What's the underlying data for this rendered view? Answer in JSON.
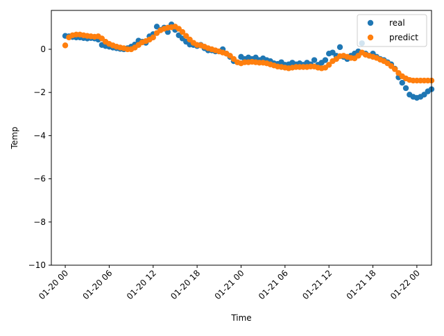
{
  "chart_data": {
    "type": "scatter",
    "title": "",
    "xlabel": "Time",
    "ylabel": "Temp",
    "ylim": [
      -10,
      1.8
    ],
    "xlim_hours": [
      -1.9,
      50.0
    ],
    "yticks": [
      0,
      -2,
      -4,
      -6,
      -8,
      -10
    ],
    "xticks": [
      {
        "label": "01-20 00",
        "hour": 0
      },
      {
        "label": "01-20 06",
        "hour": 6
      },
      {
        "label": "01-20 12",
        "hour": 12
      },
      {
        "label": "01-20 18",
        "hour": 18
      },
      {
        "label": "01-21 00",
        "hour": 24
      },
      {
        "label": "01-21 06",
        "hour": 30
      },
      {
        "label": "01-21 12",
        "hour": 36
      },
      {
        "label": "01-21 18",
        "hour": 42
      },
      {
        "label": "01-22 00",
        "hour": 48
      }
    ],
    "grid": false,
    "legend_position": "top-right",
    "series": [
      {
        "name": "real",
        "color": "#1f77b4",
        "points": [
          [
            0,
            0.62
          ],
          [
            0.5,
            0.6
          ],
          [
            1,
            0.57
          ],
          [
            1.5,
            0.55
          ],
          [
            2,
            0.55
          ],
          [
            2.5,
            0.52
          ],
          [
            3,
            0.5
          ],
          [
            3.5,
            0.52
          ],
          [
            4,
            0.5
          ],
          [
            4.5,
            0.45
          ],
          [
            5,
            0.2
          ],
          [
            5.5,
            0.15
          ],
          [
            6,
            0.12
          ],
          [
            6.5,
            0.08
          ],
          [
            7,
            0.05
          ],
          [
            7.5,
            0.02
          ],
          [
            8,
            0.0
          ],
          [
            8.5,
            0.05
          ],
          [
            9,
            0.12
          ],
          [
            9.5,
            0.22
          ],
          [
            10,
            0.4
          ],
          [
            10.5,
            0.35
          ],
          [
            11,
            0.3
          ],
          [
            11.5,
            0.6
          ],
          [
            12,
            0.7
          ],
          [
            12.5,
            1.05
          ],
          [
            13,
            0.9
          ],
          [
            13.5,
            1.0
          ],
          [
            14,
            0.8
          ],
          [
            14.5,
            1.15
          ],
          [
            15,
            0.9
          ],
          [
            15.5,
            0.65
          ],
          [
            16,
            0.5
          ],
          [
            16.5,
            0.35
          ],
          [
            17,
            0.22
          ],
          [
            17.5,
            0.2
          ],
          [
            18,
            0.15
          ],
          [
            18.5,
            0.2
          ],
          [
            19,
            0.05
          ],
          [
            19.5,
            -0.05
          ],
          [
            20,
            -0.05
          ],
          [
            20.5,
            -0.1
          ],
          [
            21,
            -0.1
          ],
          [
            21.5,
            0.0
          ],
          [
            22,
            -0.2
          ],
          [
            22.5,
            -0.35
          ],
          [
            23,
            -0.55
          ],
          [
            23.5,
            -0.6
          ],
          [
            24,
            -0.35
          ],
          [
            24.5,
            -0.45
          ],
          [
            25,
            -0.38
          ],
          [
            25.5,
            -0.45
          ],
          [
            26,
            -0.38
          ],
          [
            26.5,
            -0.5
          ],
          [
            27,
            -0.42
          ],
          [
            27.5,
            -0.5
          ],
          [
            28,
            -0.55
          ],
          [
            28.5,
            -0.65
          ],
          [
            29,
            -0.68
          ],
          [
            29.5,
            -0.6
          ],
          [
            30,
            -0.72
          ],
          [
            30.5,
            -0.7
          ],
          [
            31,
            -0.62
          ],
          [
            31.5,
            -0.7
          ],
          [
            32,
            -0.65
          ],
          [
            32.5,
            -0.72
          ],
          [
            33,
            -0.62
          ],
          [
            33.5,
            -0.7
          ],
          [
            34,
            -0.5
          ],
          [
            34.5,
            -0.72
          ],
          [
            35,
            -0.62
          ],
          [
            35.5,
            -0.5
          ],
          [
            36,
            -0.2
          ],
          [
            36.5,
            -0.15
          ],
          [
            37,
            -0.3
          ],
          [
            37.5,
            0.1
          ],
          [
            38,
            -0.35
          ],
          [
            38.5,
            -0.45
          ],
          [
            39,
            -0.3
          ],
          [
            39.5,
            -0.2
          ],
          [
            40,
            -0.1
          ],
          [
            40.5,
            0.28
          ],
          [
            41,
            -0.2
          ],
          [
            41.5,
            -0.3
          ],
          [
            42,
            -0.2
          ],
          [
            42.5,
            -0.35
          ],
          [
            43,
            -0.45
          ],
          [
            43.5,
            -0.5
          ],
          [
            44,
            -0.6
          ],
          [
            44.5,
            -0.7
          ],
          [
            45,
            -0.9
          ],
          [
            45.5,
            -1.3
          ],
          [
            46,
            -1.55
          ],
          [
            46.5,
            -1.8
          ],
          [
            47,
            -2.1
          ],
          [
            47.5,
            -2.2
          ],
          [
            48,
            -2.25
          ],
          [
            48.5,
            -2.2
          ],
          [
            49,
            -2.1
          ],
          [
            49.5,
            -1.95
          ],
          [
            50,
            -1.85
          ]
        ]
      },
      {
        "name": "predict",
        "color": "#ff7f0e",
        "points": [
          [
            0,
            0.18
          ],
          [
            0.5,
            0.55
          ],
          [
            1,
            0.65
          ],
          [
            1.5,
            0.68
          ],
          [
            2,
            0.68
          ],
          [
            2.5,
            0.65
          ],
          [
            3,
            0.62
          ],
          [
            3.5,
            0.6
          ],
          [
            4,
            0.58
          ],
          [
            4.5,
            0.6
          ],
          [
            5,
            0.5
          ],
          [
            5.5,
            0.35
          ],
          [
            6,
            0.25
          ],
          [
            6.5,
            0.18
          ],
          [
            7,
            0.12
          ],
          [
            7.5,
            0.08
          ],
          [
            8,
            0.05
          ],
          [
            8.5,
            0.0
          ],
          [
            9,
            0.0
          ],
          [
            9.5,
            0.08
          ],
          [
            10,
            0.2
          ],
          [
            10.5,
            0.32
          ],
          [
            11,
            0.38
          ],
          [
            11.5,
            0.45
          ],
          [
            12,
            0.55
          ],
          [
            12.5,
            0.75
          ],
          [
            13,
            0.88
          ],
          [
            13.5,
            0.95
          ],
          [
            14,
            1.0
          ],
          [
            14.5,
            1.02
          ],
          [
            15,
            1.05
          ],
          [
            15.5,
            0.95
          ],
          [
            16,
            0.8
          ],
          [
            16.5,
            0.62
          ],
          [
            17,
            0.45
          ],
          [
            17.5,
            0.3
          ],
          [
            18,
            0.2
          ],
          [
            18.5,
            0.18
          ],
          [
            19,
            0.12
          ],
          [
            19.5,
            0.05
          ],
          [
            20,
            0.0
          ],
          [
            20.5,
            -0.05
          ],
          [
            21,
            -0.1
          ],
          [
            21.5,
            -0.15
          ],
          [
            22,
            -0.2
          ],
          [
            22.5,
            -0.3
          ],
          [
            23,
            -0.45
          ],
          [
            23.5,
            -0.6
          ],
          [
            24,
            -0.65
          ],
          [
            24.5,
            -0.6
          ],
          [
            25,
            -0.6
          ],
          [
            25.5,
            -0.58
          ],
          [
            26,
            -0.6
          ],
          [
            26.5,
            -0.62
          ],
          [
            27,
            -0.62
          ],
          [
            27.5,
            -0.65
          ],
          [
            28,
            -0.7
          ],
          [
            28.5,
            -0.75
          ],
          [
            29,
            -0.8
          ],
          [
            29.5,
            -0.82
          ],
          [
            30,
            -0.85
          ],
          [
            30.5,
            -0.88
          ],
          [
            31,
            -0.85
          ],
          [
            31.5,
            -0.82
          ],
          [
            32,
            -0.82
          ],
          [
            32.5,
            -0.82
          ],
          [
            33,
            -0.82
          ],
          [
            33.5,
            -0.8
          ],
          [
            34,
            -0.8
          ],
          [
            34.5,
            -0.85
          ],
          [
            35,
            -0.88
          ],
          [
            35.5,
            -0.85
          ],
          [
            36,
            -0.72
          ],
          [
            36.5,
            -0.55
          ],
          [
            37,
            -0.45
          ],
          [
            37.5,
            -0.32
          ],
          [
            38,
            -0.3
          ],
          [
            38.5,
            -0.35
          ],
          [
            39,
            -0.4
          ],
          [
            39.5,
            -0.42
          ],
          [
            40,
            -0.3
          ],
          [
            40.5,
            -0.15
          ],
          [
            41,
            -0.25
          ],
          [
            41.5,
            -0.3
          ],
          [
            42,
            -0.35
          ],
          [
            42.5,
            -0.4
          ],
          [
            43,
            -0.48
          ],
          [
            43.5,
            -0.55
          ],
          [
            44,
            -0.65
          ],
          [
            44.5,
            -0.78
          ],
          [
            45,
            -0.92
          ],
          [
            45.5,
            -1.1
          ],
          [
            46,
            -1.25
          ],
          [
            46.5,
            -1.35
          ],
          [
            47,
            -1.42
          ],
          [
            47.5,
            -1.45
          ],
          [
            48,
            -1.45
          ],
          [
            48.5,
            -1.45
          ],
          [
            49,
            -1.45
          ],
          [
            49.5,
            -1.45
          ],
          [
            50,
            -1.45
          ]
        ]
      }
    ]
  }
}
